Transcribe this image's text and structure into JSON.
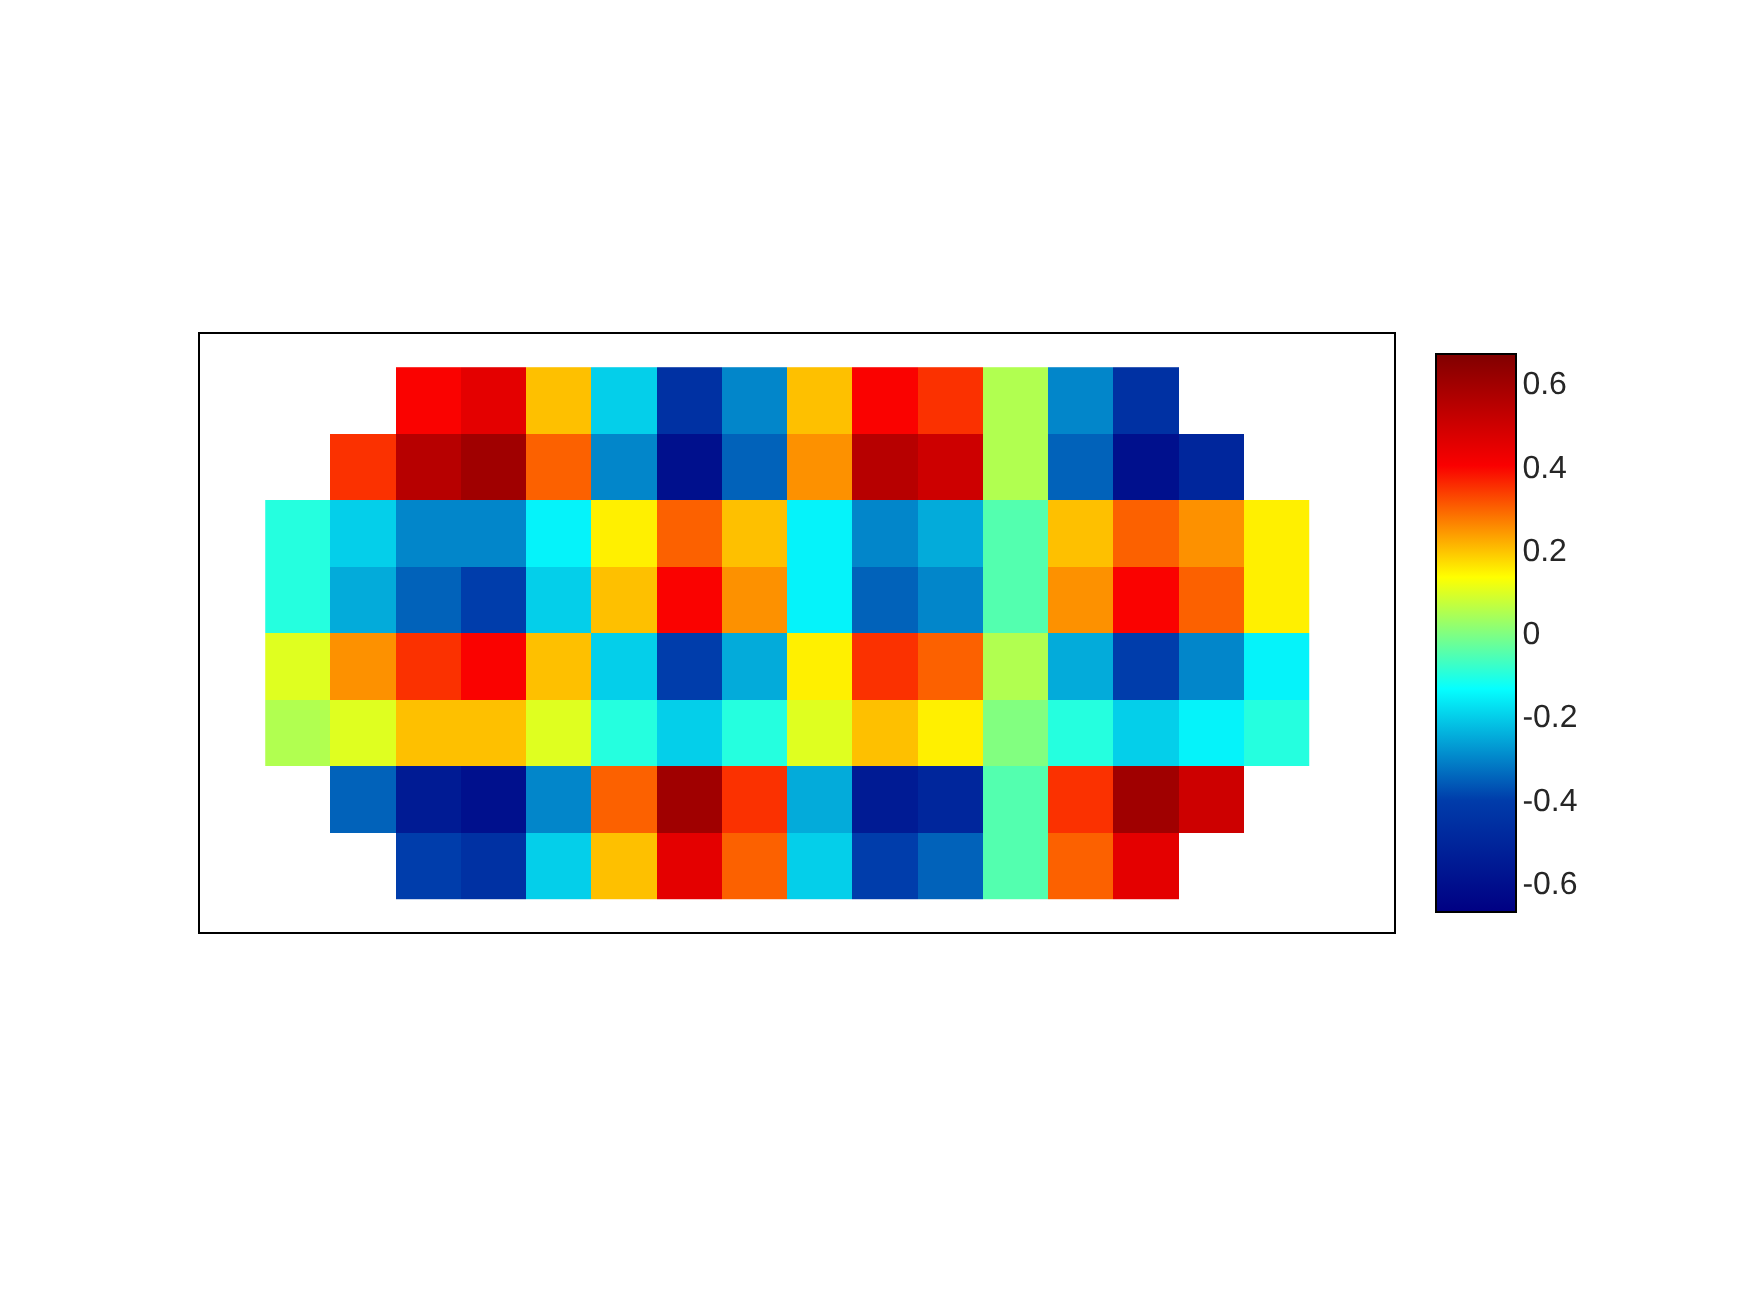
{
  "chart_data": {
    "type": "heatmap",
    "categories": [
      null,
      null,
      null,
      null,
      null,
      null,
      null,
      null,
      null,
      null,
      null,
      null,
      null,
      null,
      null,
      null
    ],
    "y_categories": [
      null,
      null,
      null,
      null,
      null,
      null,
      null,
      null
    ],
    "cells": [
      [
        null,
        null,
        0.4,
        0.45,
        0.2,
        -0.2,
        -0.45,
        -0.3,
        0.2,
        0.4,
        0.35,
        0.05,
        -0.3,
        -0.45,
        null,
        null
      ],
      [
        null,
        0.35,
        0.55,
        0.6,
        0.3,
        -0.3,
        -0.6,
        -0.35,
        0.25,
        0.55,
        0.5,
        0.05,
        -0.35,
        -0.6,
        -0.5,
        null
      ],
      [
        -0.1,
        -0.2,
        -0.3,
        -0.3,
        -0.15,
        0.15,
        0.3,
        0.2,
        -0.15,
        -0.3,
        -0.25,
        -0.05,
        0.2,
        0.3,
        0.25,
        0.15
      ],
      [
        -0.1,
        -0.25,
        -0.35,
        -0.4,
        -0.2,
        0.2,
        0.4,
        0.25,
        -0.15,
        -0.35,
        -0.3,
        -0.05,
        0.25,
        0.4,
        0.3,
        0.15
      ],
      [
        0.1,
        0.25,
        0.35,
        0.4,
        0.2,
        -0.2,
        -0.4,
        -0.25,
        0.15,
        0.35,
        0.3,
        0.05,
        -0.25,
        -0.4,
        -0.3,
        -0.15
      ],
      [
        0.05,
        0.1,
        0.2,
        0.2,
        0.1,
        -0.1,
        -0.2,
        -0.1,
        0.1,
        0.2,
        0.15,
        0,
        -0.1,
        -0.2,
        -0.15,
        -0.1
      ],
      [
        null,
        -0.35,
        -0.55,
        -0.6,
        -0.3,
        0.3,
        0.6,
        0.35,
        -0.25,
        -0.55,
        -0.5,
        -0.05,
        0.35,
        0.6,
        0.5,
        null
      ],
      [
        null,
        null,
        -0.4,
        -0.45,
        -0.2,
        0.2,
        0.45,
        0.3,
        -0.2,
        -0.4,
        -0.35,
        -0.05,
        0.3,
        0.45,
        null,
        null
      ]
    ],
    "clim": [
      -0.67,
      0.67
    ],
    "cticks": [
      -0.6,
      -0.4,
      -0.2,
      0,
      0.2,
      0.4,
      0.6
    ]
  }
}
